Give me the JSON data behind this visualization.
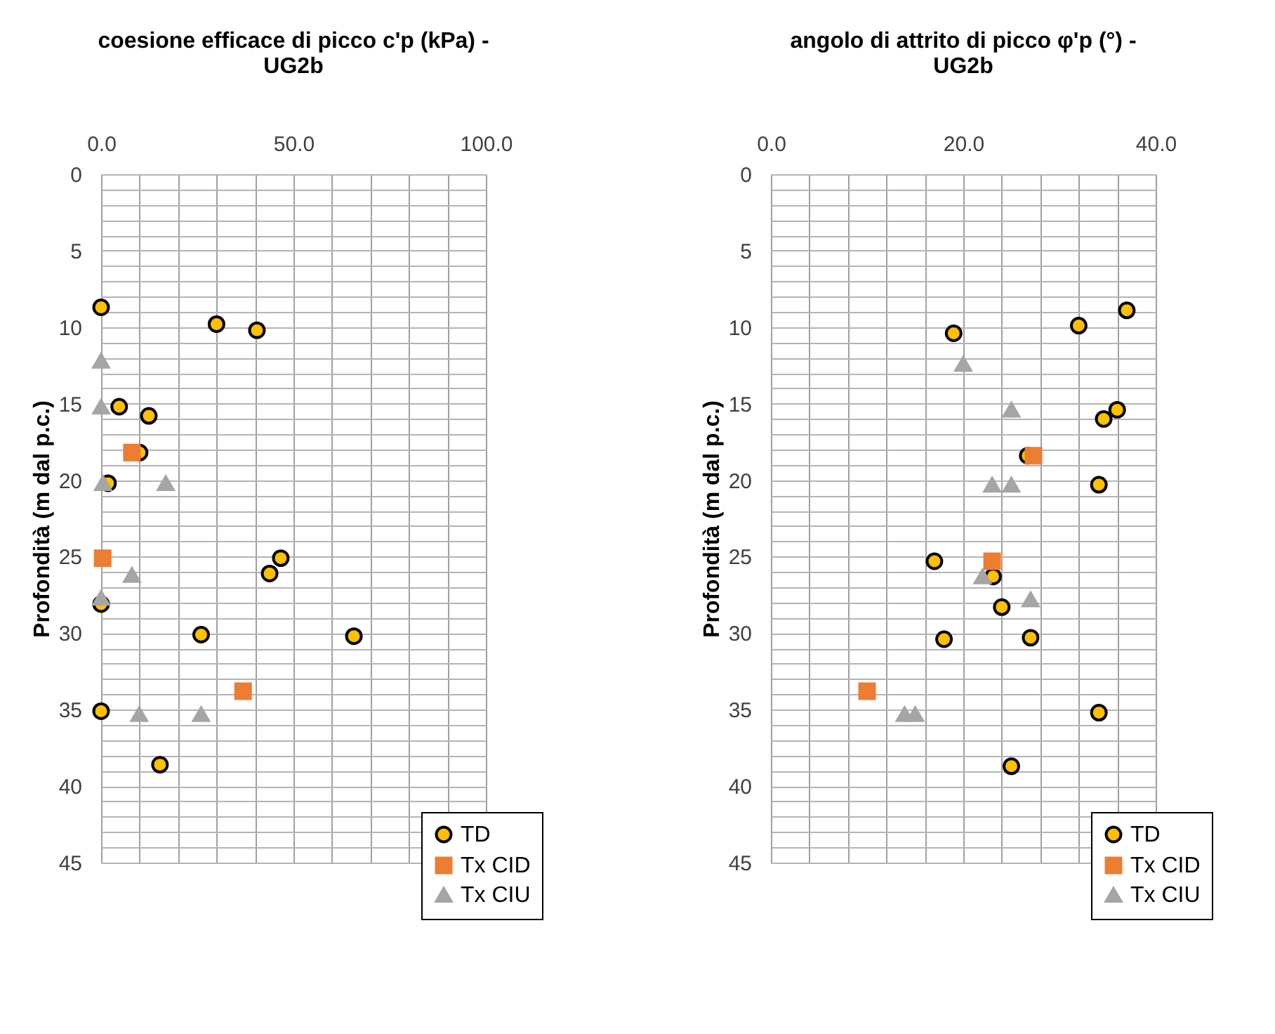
{
  "chart_data": [
    {
      "type": "scatter",
      "title": "coesione efficace di picco c'p (kPa) - UG2b",
      "ylabel": "Profondità (m dal p.c.)",
      "xlim": [
        0,
        100
      ],
      "xticks": [
        {
          "value": 0,
          "label": "0.0"
        },
        {
          "value": 10,
          "label": null
        },
        {
          "value": 20,
          "label": null
        },
        {
          "value": 30,
          "label": null
        },
        {
          "value": 40,
          "label": null
        },
        {
          "value": 50,
          "label": "50.0"
        },
        {
          "value": 60,
          "label": null
        },
        {
          "value": 70,
          "label": null
        },
        {
          "value": 80,
          "label": null
        },
        {
          "value": 90,
          "label": null
        },
        {
          "value": 100,
          "label": "100.0"
        }
      ],
      "ylim": [
        45,
        0
      ],
      "yticks": [
        0,
        {
          "value": 1,
          "label": null
        },
        {
          "value": 2,
          "label": null
        },
        {
          "value": 3,
          "label": null
        },
        {
          "value": 4,
          "label": null
        },
        5,
        {
          "value": 6,
          "label": null
        },
        {
          "value": 7,
          "label": null
        },
        {
          "value": 8,
          "label": null
        },
        {
          "value": 9,
          "label": null
        },
        10,
        {
          "value": 11,
          "label": null
        },
        {
          "value": 12,
          "label": null
        },
        {
          "value": 13,
          "label": null
        },
        {
          "value": 14,
          "label": null
        },
        15,
        {
          "value": 16,
          "label": null
        },
        {
          "value": 17,
          "label": null
        },
        {
          "value": 18,
          "label": null
        },
        {
          "value": 19,
          "label": null
        },
        20,
        {
          "value": 21,
          "label": null
        },
        {
          "value": 22,
          "label": null
        },
        {
          "value": 23,
          "label": null
        },
        {
          "value": 24,
          "label": null
        },
        25,
        {
          "value": 26,
          "label": null
        },
        {
          "value": 27,
          "label": null
        },
        {
          "value": 28,
          "label": null
        },
        {
          "value": 29,
          "label": null
        },
        30,
        {
          "value": 31,
          "label": null
        },
        {
          "value": 32,
          "label": null
        },
        {
          "value": 33,
          "label": null
        },
        {
          "value": 34,
          "label": null
        },
        35,
        {
          "value": 36,
          "label": null
        },
        {
          "value": 37,
          "label": null
        },
        {
          "value": 38,
          "label": null
        },
        {
          "value": 39,
          "label": null
        },
        40,
        {
          "value": 41,
          "label": null
        },
        {
          "value": 42,
          "label": null
        },
        {
          "value": 43,
          "label": null
        },
        {
          "value": 44,
          "label": null
        },
        45
      ],
      "grid": true,
      "legend": "bottom right",
      "series": [
        {
          "name": "TD",
          "color": "#ffc000",
          "marker": "circle",
          "x": [
            0,
            30,
            40.5,
            4.7,
            12.4,
            10,
            1.8,
            46.7,
            43.8,
            0,
            26,
            65.7,
            0,
            15.3
          ],
          "values": [
            8.7,
            9.8,
            10.2,
            15.2,
            15.8,
            18.2,
            20.2,
            25.1,
            26.1,
            28.1,
            30.1,
            30.2,
            35.1,
            38.6
          ]
        },
        {
          "name": "Tx CID",
          "color": "#ed7d31",
          "marker": "square",
          "x": [
            8,
            0.4,
            36.9
          ],
          "values": [
            18.2,
            25.1,
            33.8
          ]
        },
        {
          "name": "Tx CIU",
          "color": "#a5a5a5",
          "marker": "triangle",
          "x": [
            0,
            0,
            0.5,
            16.8,
            8,
            0,
            9.9,
            26
          ],
          "values": [
            12.2,
            15.2,
            20.2,
            20.2,
            26.2,
            27.7,
            35.3,
            35.3
          ]
        }
      ]
    },
    {
      "type": "scatter",
      "title": "angolo di attrito di picco φ'p (°) - UG2b",
      "ylabel": "Profondità (m dal p.c.)",
      "xlim": [
        0,
        40
      ],
      "xticks": [
        {
          "value": 0,
          "label": "0.0"
        },
        {
          "value": 4,
          "label": null
        },
        {
          "value": 8,
          "label": null
        },
        {
          "value": 12,
          "label": null
        },
        {
          "value": 16,
          "label": null
        },
        {
          "value": 20,
          "label": "20.0"
        },
        {
          "value": 24,
          "label": null
        },
        {
          "value": 28,
          "label": null
        },
        {
          "value": 32,
          "label": null
        },
        {
          "value": 36,
          "label": null
        },
        {
          "value": 40,
          "label": "40.0"
        }
      ],
      "ylim": [
        45,
        0
      ],
      "yticks": [
        0,
        {
          "value": 1,
          "label": null
        },
        {
          "value": 2,
          "label": null
        },
        {
          "value": 3,
          "label": null
        },
        {
          "value": 4,
          "label": null
        },
        5,
        {
          "value": 6,
          "label": null
        },
        {
          "value": 7,
          "label": null
        },
        {
          "value": 8,
          "label": null
        },
        {
          "value": 9,
          "label": null
        },
        10,
        {
          "value": 11,
          "label": null
        },
        {
          "value": 12,
          "label": null
        },
        {
          "value": 13,
          "label": null
        },
        {
          "value": 14,
          "label": null
        },
        15,
        {
          "value": 16,
          "label": null
        },
        {
          "value": 17,
          "label": null
        },
        {
          "value": 18,
          "label": null
        },
        {
          "value": 19,
          "label": null
        },
        20,
        {
          "value": 21,
          "label": null
        },
        {
          "value": 22,
          "label": null
        },
        {
          "value": 23,
          "label": null
        },
        {
          "value": 24,
          "label": null
        },
        25,
        {
          "value": 26,
          "label": null
        },
        {
          "value": 27,
          "label": null
        },
        {
          "value": 28,
          "label": null
        },
        {
          "value": 29,
          "label": null
        },
        30,
        {
          "value": 31,
          "label": null
        },
        {
          "value": 32,
          "label": null
        },
        {
          "value": 33,
          "label": null
        },
        {
          "value": 34,
          "label": null
        },
        35,
        {
          "value": 36,
          "label": null
        },
        {
          "value": 37,
          "label": null
        },
        {
          "value": 38,
          "label": null
        },
        {
          "value": 39,
          "label": null
        },
        40,
        {
          "value": 41,
          "label": null
        },
        {
          "value": 42,
          "label": null
        },
        {
          "value": 43,
          "label": null
        },
        {
          "value": 44,
          "label": null
        },
        45
      ],
      "grid": true,
      "legend": "bottom right",
      "series": [
        {
          "name": "TD",
          "color": "#ffc000",
          "marker": "circle",
          "x": [
            37,
            32,
            19,
            36,
            34.6,
            26.7,
            34.1,
            17,
            23.1,
            24,
            18,
            27,
            34.1,
            25
          ],
          "values": [
            8.9,
            9.9,
            10.4,
            15.4,
            16.0,
            18.4,
            20.3,
            25.3,
            26.3,
            28.3,
            30.4,
            30.3,
            35.2,
            38.7
          ]
        },
        {
          "name": "Tx CID",
          "color": "#ed7d31",
          "marker": "square",
          "x": [
            27.3,
            23,
            10
          ],
          "values": [
            18.4,
            25.3,
            33.8
          ]
        },
        {
          "name": "Tx CIU",
          "color": "#a5a5a5",
          "marker": "triangle",
          "x": [
            20,
            25,
            23,
            25,
            22,
            27,
            13.9,
            15
          ],
          "values": [
            12.4,
            15.4,
            20.3,
            20.3,
            26.3,
            27.8,
            35.3,
            35.3
          ]
        }
      ]
    }
  ]
}
